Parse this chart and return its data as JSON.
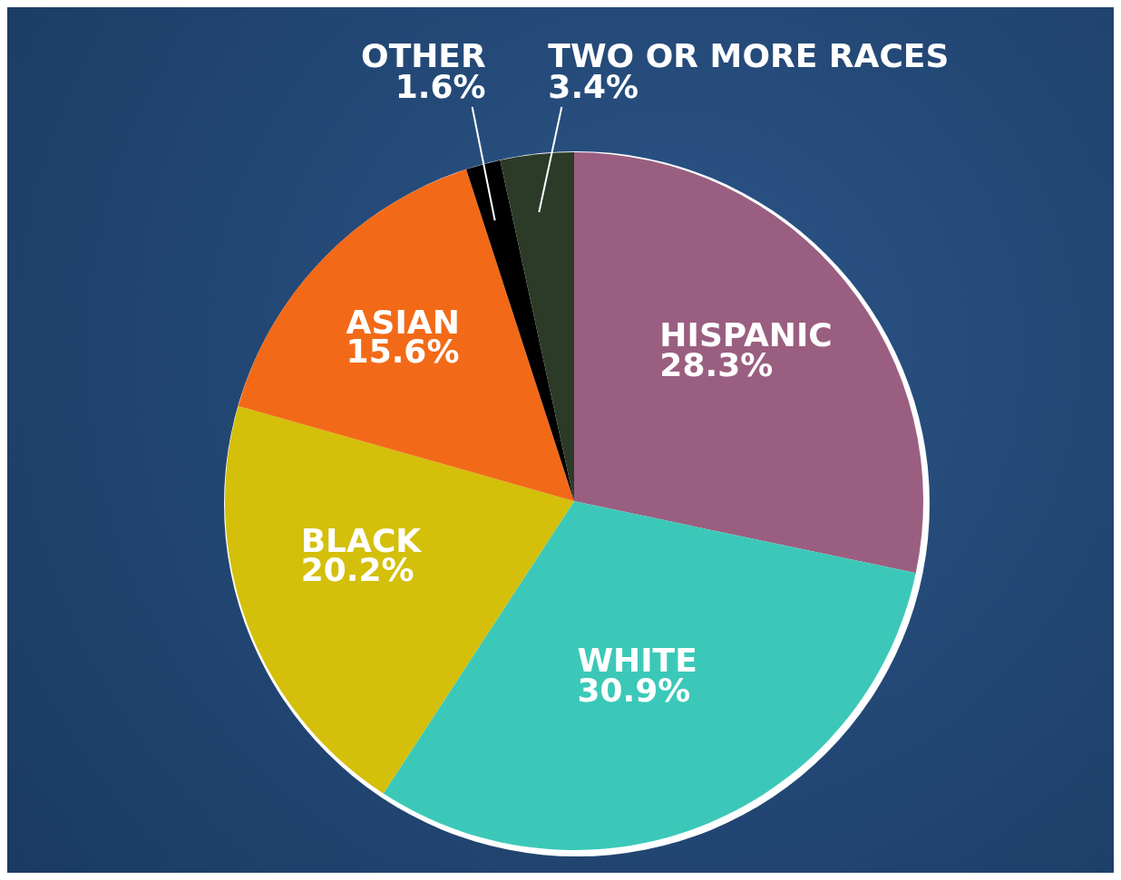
{
  "chart_data": {
    "type": "pie",
    "categories": [
      "HISPANIC",
      "WHITE",
      "BLACK",
      "ASIAN",
      "OTHER",
      "TWO OR MORE RACES"
    ],
    "values": [
      28.3,
      30.9,
      20.2,
      15.6,
      1.6,
      3.4
    ],
    "value_labels": [
      "28.3%",
      "30.9%",
      "20.2%",
      "15.6%",
      "1.6%",
      "3.4%"
    ],
    "colors": [
      "#9a5f80",
      "#3cc8b8",
      "#d4bf0a",
      "#f26a18",
      "#000000",
      "#2c3a28"
    ],
    "legend": false
  }
}
